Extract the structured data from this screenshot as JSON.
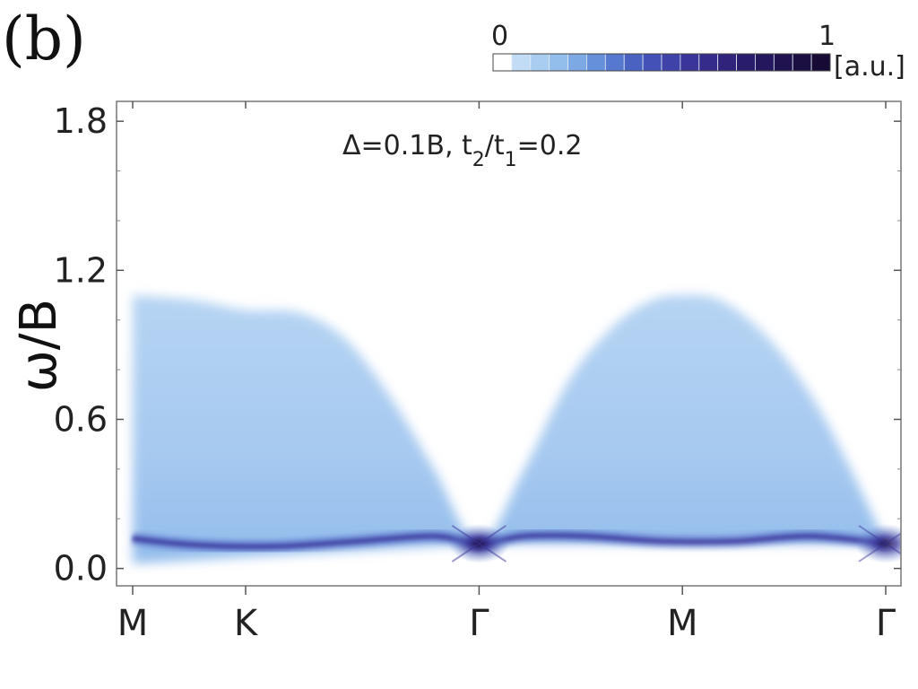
{
  "panel_label": "(b)",
  "colorbar": {
    "min_label": "0",
    "max_label": "1",
    "unit_label": "[a.u.]",
    "colors": [
      "#ffffff",
      "#c3dcf5",
      "#a9cdf1",
      "#93bdeb",
      "#7ca8e4",
      "#6690da",
      "#5678cf",
      "#4a63c3",
      "#4451b7",
      "#3f42a8",
      "#3a3599",
      "#352b8a",
      "#30237b",
      "#2a1c6c",
      "#25175d",
      "#20124e",
      "#1b0e41",
      "#170b35"
    ]
  },
  "chart_data": {
    "type": "heatmap",
    "title": "",
    "annotation": {
      "text": "Δ=0.1B, t",
      "sub1": "2",
      "mid": "/t",
      "sub2": "1",
      "tail": "=0.2"
    },
    "ylabel": "ω/B",
    "xlabel": "",
    "ylim": [
      -0.07,
      1.88
    ],
    "yticks": [
      {
        "value": 0.0,
        "label": "0.0"
      },
      {
        "value": 0.6,
        "label": "0.6"
      },
      {
        "value": 1.2,
        "label": "1.2"
      },
      {
        "value": 1.8,
        "label": "1.8"
      }
    ],
    "y_minor_ticks": [
      0.2,
      0.4,
      0.8,
      1.0,
      1.4,
      1.6
    ],
    "xlim": [
      0,
      1
    ],
    "xticks": [
      {
        "value": 0.0,
        "label": "M"
      },
      {
        "value": 0.15,
        "label": "K"
      },
      {
        "value": 0.46,
        "label": "Γ"
      },
      {
        "value": 0.73,
        "label": "M"
      },
      {
        "value": 1.0,
        "label": "Γ"
      }
    ],
    "intensity_range": [
      0,
      1
    ],
    "continuum_upper_edge": [
      {
        "x": 0.0,
        "y": 1.1
      },
      {
        "x": 0.08,
        "y": 1.08
      },
      {
        "x": 0.15,
        "y": 1.04
      },
      {
        "x": 0.22,
        "y": 1.03
      },
      {
        "x": 0.28,
        "y": 0.93
      },
      {
        "x": 0.34,
        "y": 0.7
      },
      {
        "x": 0.4,
        "y": 0.4
      },
      {
        "x": 0.46,
        "y": 0.1
      },
      {
        "x": 0.52,
        "y": 0.4
      },
      {
        "x": 0.58,
        "y": 0.76
      },
      {
        "x": 0.64,
        "y": 0.98
      },
      {
        "x": 0.69,
        "y": 1.08
      },
      {
        "x": 0.73,
        "y": 1.1
      },
      {
        "x": 0.78,
        "y": 1.08
      },
      {
        "x": 0.84,
        "y": 0.94
      },
      {
        "x": 0.9,
        "y": 0.7
      },
      {
        "x": 0.95,
        "y": 0.42
      },
      {
        "x": 1.0,
        "y": 0.1
      }
    ],
    "continuum_lower_edge": [
      {
        "x": 0.0,
        "y": 0.02
      },
      {
        "x": 0.46,
        "y": 0.1
      },
      {
        "x": 1.0,
        "y": 0.1
      }
    ],
    "bright_branch": [
      {
        "x": 0.0,
        "y": 0.12
      },
      {
        "x": 0.06,
        "y": 0.1
      },
      {
        "x": 0.12,
        "y": 0.09
      },
      {
        "x": 0.2,
        "y": 0.09
      },
      {
        "x": 0.3,
        "y": 0.11
      },
      {
        "x": 0.4,
        "y": 0.13
      },
      {
        "x": 0.46,
        "y": 0.1
      },
      {
        "x": 0.52,
        "y": 0.13
      },
      {
        "x": 0.6,
        "y": 0.13
      },
      {
        "x": 0.7,
        "y": 0.11
      },
      {
        "x": 0.8,
        "y": 0.11
      },
      {
        "x": 0.9,
        "y": 0.13
      },
      {
        "x": 1.0,
        "y": 0.1
      }
    ],
    "hotspots": [
      {
        "x": 0.46,
        "y": 0.1,
        "intensity": 1.0
      },
      {
        "x": 1.0,
        "y": 0.1,
        "intensity": 0.9
      }
    ]
  }
}
